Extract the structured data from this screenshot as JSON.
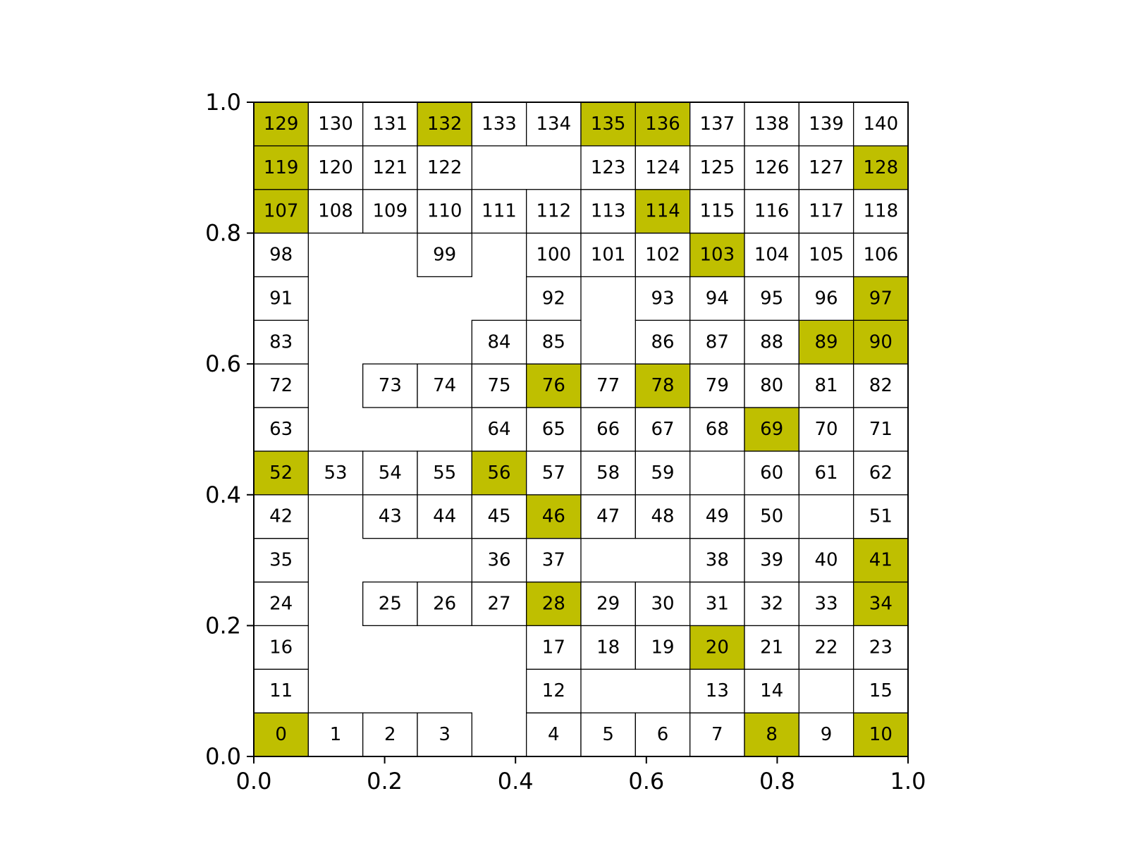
{
  "chart_data": {
    "type": "heatmap",
    "title": "",
    "xlabel": "",
    "ylabel": "",
    "xlim": [
      0.0,
      1.0
    ],
    "ylim": [
      0.0,
      1.0
    ],
    "grid_cols": 12,
    "grid_rows": 15,
    "x_ticks": [
      "0.0",
      "0.2",
      "0.4",
      "0.6",
      "0.8",
      "1.0"
    ],
    "y_ticks": [
      "0.0",
      "0.2",
      "0.4",
      "0.6",
      "0.8",
      "1.0"
    ],
    "colors": {
      "normal": "#ffffff",
      "highlight": "#bfbf00"
    },
    "cells": [
      {
        "id": "0",
        "col": 0,
        "row": 0,
        "h": true
      },
      {
        "id": "1",
        "col": 1,
        "row": 0
      },
      {
        "id": "2",
        "col": 2,
        "row": 0
      },
      {
        "id": "3",
        "col": 3,
        "row": 0
      },
      {
        "id": "4",
        "col": 5,
        "row": 0
      },
      {
        "id": "5",
        "col": 6,
        "row": 0
      },
      {
        "id": "6",
        "col": 7,
        "row": 0
      },
      {
        "id": "7",
        "col": 8,
        "row": 0
      },
      {
        "id": "8",
        "col": 9,
        "row": 0,
        "h": true
      },
      {
        "id": "9",
        "col": 10,
        "row": 0
      },
      {
        "id": "10",
        "col": 11,
        "row": 0,
        "h": true
      },
      {
        "id": "11",
        "col": 0,
        "row": 1
      },
      {
        "id": "12",
        "col": 5,
        "row": 1
      },
      {
        "id": "13",
        "col": 8,
        "row": 1
      },
      {
        "id": "14",
        "col": 9,
        "row": 1
      },
      {
        "id": "15",
        "col": 11,
        "row": 1
      },
      {
        "id": "16",
        "col": 0,
        "row": 2
      },
      {
        "id": "17",
        "col": 5,
        "row": 2
      },
      {
        "id": "18",
        "col": 6,
        "row": 2
      },
      {
        "id": "19",
        "col": 7,
        "row": 2
      },
      {
        "id": "20",
        "col": 8,
        "row": 2,
        "h": true
      },
      {
        "id": "21",
        "col": 9,
        "row": 2
      },
      {
        "id": "22",
        "col": 10,
        "row": 2
      },
      {
        "id": "23",
        "col": 11,
        "row": 2
      },
      {
        "id": "24",
        "col": 0,
        "row": 3
      },
      {
        "id": "25",
        "col": 2,
        "row": 3
      },
      {
        "id": "26",
        "col": 3,
        "row": 3
      },
      {
        "id": "27",
        "col": 4,
        "row": 3
      },
      {
        "id": "28",
        "col": 5,
        "row": 3,
        "h": true
      },
      {
        "id": "29",
        "col": 6,
        "row": 3
      },
      {
        "id": "30",
        "col": 7,
        "row": 3
      },
      {
        "id": "31",
        "col": 8,
        "row": 3
      },
      {
        "id": "32",
        "col": 9,
        "row": 3
      },
      {
        "id": "33",
        "col": 10,
        "row": 3
      },
      {
        "id": "34",
        "col": 11,
        "row": 3,
        "h": true
      },
      {
        "id": "35",
        "col": 0,
        "row": 4
      },
      {
        "id": "36",
        "col": 4,
        "row": 4
      },
      {
        "id": "37",
        "col": 5,
        "row": 4
      },
      {
        "id": "38",
        "col": 8,
        "row": 4
      },
      {
        "id": "39",
        "col": 9,
        "row": 4
      },
      {
        "id": "40",
        "col": 10,
        "row": 4
      },
      {
        "id": "41",
        "col": 11,
        "row": 4,
        "h": true
      },
      {
        "id": "42",
        "col": 0,
        "row": 5
      },
      {
        "id": "43",
        "col": 2,
        "row": 5
      },
      {
        "id": "44",
        "col": 3,
        "row": 5
      },
      {
        "id": "45",
        "col": 4,
        "row": 5
      },
      {
        "id": "46",
        "col": 5,
        "row": 5,
        "h": true
      },
      {
        "id": "47",
        "col": 6,
        "row": 5
      },
      {
        "id": "48",
        "col": 7,
        "row": 5
      },
      {
        "id": "49",
        "col": 8,
        "row": 5
      },
      {
        "id": "50",
        "col": 9,
        "row": 5
      },
      {
        "id": "51",
        "col": 11,
        "row": 5
      },
      {
        "id": "52",
        "col": 0,
        "row": 6,
        "h": true
      },
      {
        "id": "53",
        "col": 1,
        "row": 6
      },
      {
        "id": "54",
        "col": 2,
        "row": 6
      },
      {
        "id": "55",
        "col": 3,
        "row": 6
      },
      {
        "id": "56",
        "col": 4,
        "row": 6,
        "h": true
      },
      {
        "id": "57",
        "col": 5,
        "row": 6
      },
      {
        "id": "58",
        "col": 6,
        "row": 6
      },
      {
        "id": "59",
        "col": 7,
        "row": 6
      },
      {
        "id": "60",
        "col": 9,
        "row": 6
      },
      {
        "id": "61",
        "col": 10,
        "row": 6
      },
      {
        "id": "62",
        "col": 11,
        "row": 6
      },
      {
        "id": "63",
        "col": 0,
        "row": 7
      },
      {
        "id": "64",
        "col": 4,
        "row": 7
      },
      {
        "id": "65",
        "col": 5,
        "row": 7
      },
      {
        "id": "66",
        "col": 6,
        "row": 7
      },
      {
        "id": "67",
        "col": 7,
        "row": 7
      },
      {
        "id": "68",
        "col": 8,
        "row": 7
      },
      {
        "id": "69",
        "col": 9,
        "row": 7,
        "h": true
      },
      {
        "id": "70",
        "col": 10,
        "row": 7
      },
      {
        "id": "71",
        "col": 11,
        "row": 7
      },
      {
        "id": "72",
        "col": 0,
        "row": 8
      },
      {
        "id": "73",
        "col": 2,
        "row": 8
      },
      {
        "id": "74",
        "col": 3,
        "row": 8
      },
      {
        "id": "75",
        "col": 4,
        "row": 8
      },
      {
        "id": "76",
        "col": 5,
        "row": 8,
        "h": true
      },
      {
        "id": "77",
        "col": 6,
        "row": 8
      },
      {
        "id": "78",
        "col": 7,
        "row": 8,
        "h": true
      },
      {
        "id": "79",
        "col": 8,
        "row": 8
      },
      {
        "id": "80",
        "col": 9,
        "row": 8
      },
      {
        "id": "81",
        "col": 10,
        "row": 8
      },
      {
        "id": "82",
        "col": 11,
        "row": 8
      },
      {
        "id": "83",
        "col": 0,
        "row": 9
      },
      {
        "id": "84",
        "col": 4,
        "row": 9
      },
      {
        "id": "85",
        "col": 5,
        "row": 9
      },
      {
        "id": "86",
        "col": 7,
        "row": 9
      },
      {
        "id": "87",
        "col": 8,
        "row": 9
      },
      {
        "id": "88",
        "col": 9,
        "row": 9
      },
      {
        "id": "89",
        "col": 10,
        "row": 9,
        "h": true
      },
      {
        "id": "90",
        "col": 11,
        "row": 9,
        "h": true
      },
      {
        "id": "91",
        "col": 0,
        "row": 10
      },
      {
        "id": "92",
        "col": 5,
        "row": 10
      },
      {
        "id": "93",
        "col": 7,
        "row": 10
      },
      {
        "id": "94",
        "col": 8,
        "row": 10
      },
      {
        "id": "95",
        "col": 9,
        "row": 10
      },
      {
        "id": "96",
        "col": 10,
        "row": 10
      },
      {
        "id": "97",
        "col": 11,
        "row": 10,
        "h": true
      },
      {
        "id": "98",
        "col": 0,
        "row": 11
      },
      {
        "id": "99",
        "col": 3,
        "row": 11
      },
      {
        "id": "100",
        "col": 5,
        "row": 11
      },
      {
        "id": "101",
        "col": 6,
        "row": 11
      },
      {
        "id": "102",
        "col": 7,
        "row": 11
      },
      {
        "id": "103",
        "col": 8,
        "row": 11,
        "h": true
      },
      {
        "id": "104",
        "col": 9,
        "row": 11
      },
      {
        "id": "105",
        "col": 10,
        "row": 11
      },
      {
        "id": "106",
        "col": 11,
        "row": 11
      },
      {
        "id": "107",
        "col": 0,
        "row": 12,
        "h": true
      },
      {
        "id": "108",
        "col": 1,
        "row": 12
      },
      {
        "id": "109",
        "col": 2,
        "row": 12
      },
      {
        "id": "110",
        "col": 3,
        "row": 12
      },
      {
        "id": "111",
        "col": 4,
        "row": 12
      },
      {
        "id": "112",
        "col": 5,
        "row": 12
      },
      {
        "id": "113",
        "col": 6,
        "row": 12
      },
      {
        "id": "114",
        "col": 7,
        "row": 12,
        "h": true
      },
      {
        "id": "115",
        "col": 8,
        "row": 12
      },
      {
        "id": "116",
        "col": 9,
        "row": 12
      },
      {
        "id": "117",
        "col": 10,
        "row": 12
      },
      {
        "id": "118",
        "col": 11,
        "row": 12
      },
      {
        "id": "119",
        "col": 0,
        "row": 13,
        "h": true
      },
      {
        "id": "120",
        "col": 1,
        "row": 13
      },
      {
        "id": "121",
        "col": 2,
        "row": 13
      },
      {
        "id": "122",
        "col": 3,
        "row": 13
      },
      {
        "id": "123",
        "col": 6,
        "row": 13
      },
      {
        "id": "124",
        "col": 7,
        "row": 13
      },
      {
        "id": "125",
        "col": 8,
        "row": 13
      },
      {
        "id": "126",
        "col": 9,
        "row": 13
      },
      {
        "id": "127",
        "col": 10,
        "row": 13
      },
      {
        "id": "128",
        "col": 11,
        "row": 13,
        "h": true
      },
      {
        "id": "129",
        "col": 0,
        "row": 14,
        "h": true
      },
      {
        "id": "130",
        "col": 1,
        "row": 14
      },
      {
        "id": "131",
        "col": 2,
        "row": 14
      },
      {
        "id": "132",
        "col": 3,
        "row": 14,
        "h": true
      },
      {
        "id": "133",
        "col": 4,
        "row": 14
      },
      {
        "id": "134",
        "col": 5,
        "row": 14
      },
      {
        "id": "135",
        "col": 6,
        "row": 14,
        "h": true
      },
      {
        "id": "136",
        "col": 7,
        "row": 14,
        "h": true
      },
      {
        "id": "137",
        "col": 8,
        "row": 14
      },
      {
        "id": "138",
        "col": 9,
        "row": 14
      },
      {
        "id": "139",
        "col": 10,
        "row": 14
      },
      {
        "id": "140",
        "col": 11,
        "row": 14
      }
    ]
  }
}
